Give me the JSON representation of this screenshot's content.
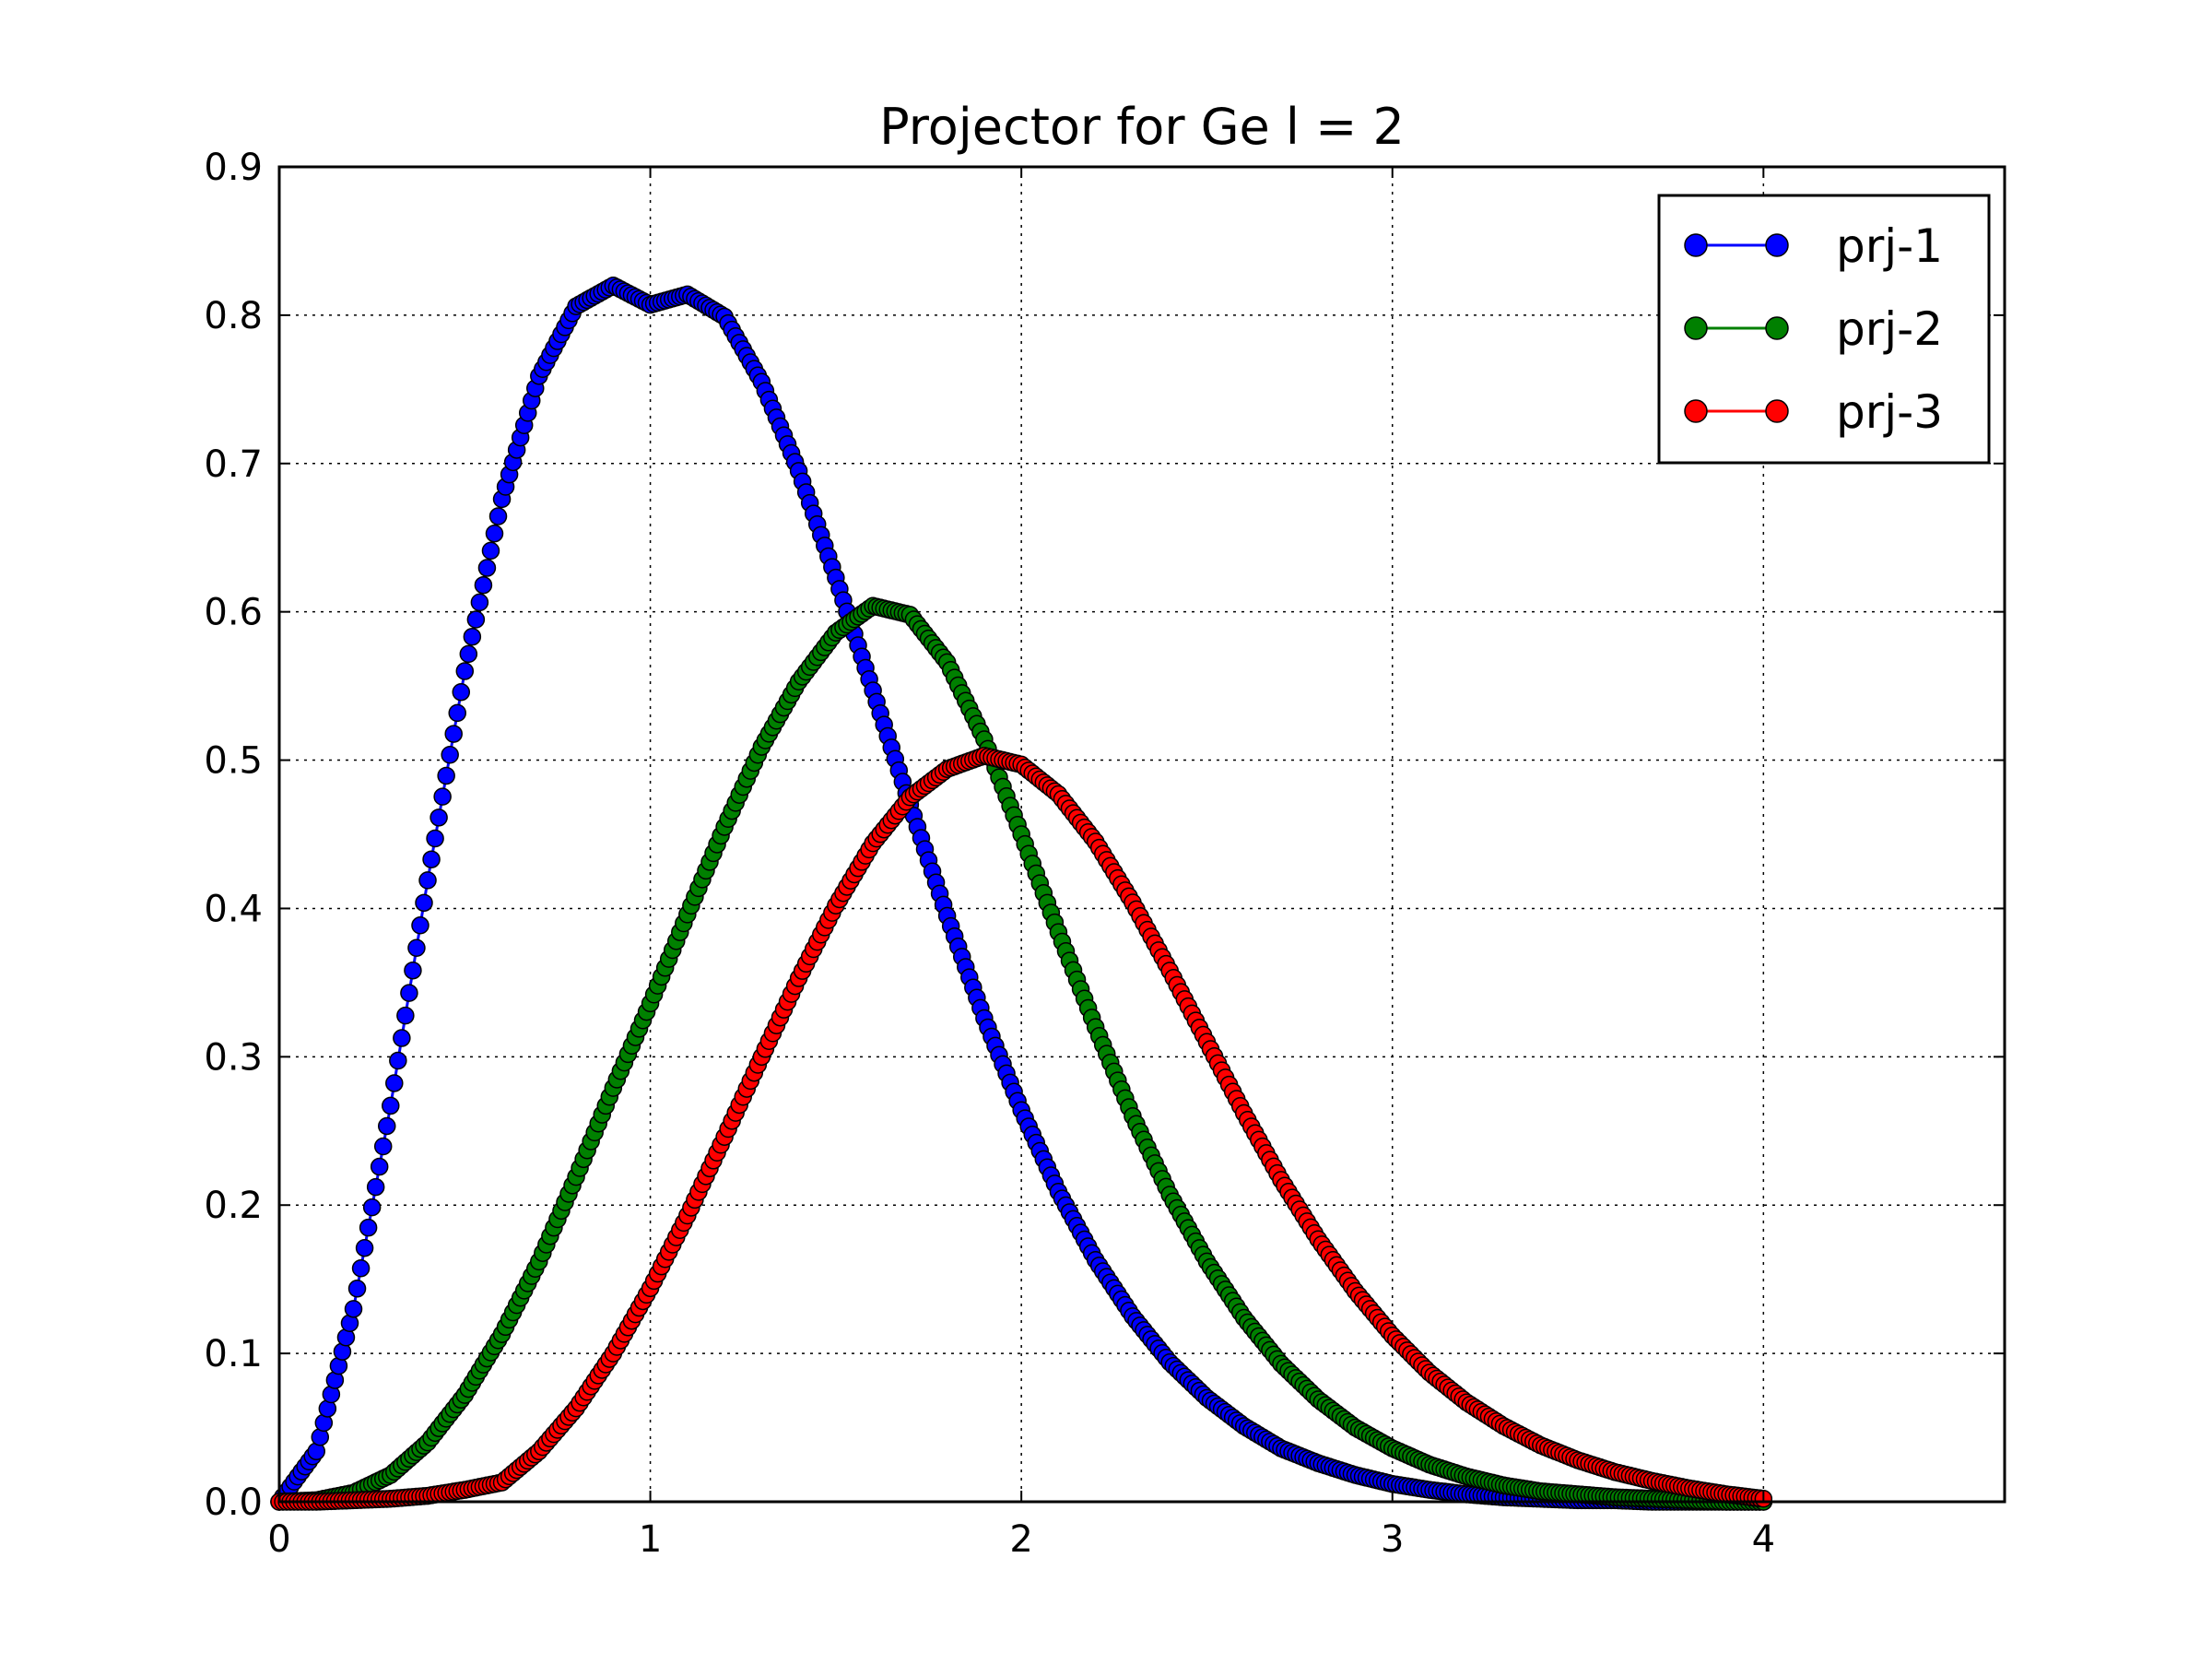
{
  "chart_data": {
    "type": "line",
    "title": "Projector for Ge l = 2",
    "xlabel": "",
    "ylabel": "",
    "xlim": [
      0,
      4.65
    ],
    "ylim": [
      0,
      0.9
    ],
    "x_ticks": [
      0,
      1,
      2,
      3,
      4
    ],
    "x_tick_labels": [
      "0",
      "1",
      "2",
      "3",
      "4"
    ],
    "y_ticks": [
      0.0,
      0.1,
      0.2,
      0.3,
      0.4,
      0.5,
      0.6,
      0.7,
      0.8,
      0.9
    ],
    "y_tick_labels": [
      "0.0",
      "0.1",
      "0.2",
      "0.3",
      "0.4",
      "0.5",
      "0.6",
      "0.7",
      "0.8",
      "0.9"
    ],
    "grid": true,
    "legend_position": "top-right",
    "x": [
      0.0,
      0.1,
      0.2,
      0.3,
      0.4,
      0.5,
      0.6,
      0.7,
      0.8,
      0.9,
      1.0,
      1.1,
      1.2,
      1.3,
      1.4,
      1.5,
      1.6,
      1.7,
      1.8,
      1.9,
      2.0,
      2.1,
      2.2,
      2.3,
      2.4,
      2.5,
      2.6,
      2.7,
      2.8,
      2.9,
      3.0,
      3.1,
      3.2,
      3.3,
      3.4,
      3.5,
      3.6,
      3.7,
      3.8,
      3.9,
      4.0
    ],
    "series": [
      {
        "name": "prj-1",
        "color": "#0000ff",
        "values": [
          0.0,
          0.034,
          0.13,
          0.267,
          0.419,
          0.56,
          0.676,
          0.759,
          0.806,
          0.82,
          0.807,
          0.814,
          0.799,
          0.755,
          0.695,
          0.623,
          0.547,
          0.47,
          0.395,
          0.326,
          0.264,
          0.209,
          0.163,
          0.125,
          0.094,
          0.07,
          0.051,
          0.036,
          0.026,
          0.018,
          0.012,
          0.008,
          0.005,
          0.003,
          0.002,
          0.001,
          0.001,
          0.0,
          0.0,
          0.0,
          0.0
        ]
      },
      {
        "name": "prj-2",
        "color": "#008000",
        "values": [
          0.0,
          0.001,
          0.006,
          0.018,
          0.04,
          0.072,
          0.113,
          0.162,
          0.219,
          0.279,
          0.336,
          0.396,
          0.455,
          0.509,
          0.553,
          0.586,
          0.604,
          0.598,
          0.566,
          0.514,
          0.45,
          0.384,
          0.32,
          0.26,
          0.207,
          0.162,
          0.124,
          0.093,
          0.069,
          0.05,
          0.036,
          0.025,
          0.017,
          0.011,
          0.007,
          0.005,
          0.003,
          0.002,
          0.001,
          0.0,
          0.0
        ]
      },
      {
        "name": "prj-3",
        "color": "#ff0000",
        "values": [
          0.0,
          0.0,
          0.001,
          0.002,
          0.004,
          0.008,
          0.013,
          0.034,
          0.063,
          0.1,
          0.144,
          0.193,
          0.246,
          0.3,
          0.353,
          0.402,
          0.444,
          0.475,
          0.494,
          0.503,
          0.497,
          0.477,
          0.445,
          0.404,
          0.358,
          0.31,
          0.262,
          0.217,
          0.177,
          0.142,
          0.112,
          0.087,
          0.067,
          0.051,
          0.038,
          0.028,
          0.02,
          0.014,
          0.009,
          0.005,
          0.002
        ]
      }
    ]
  }
}
